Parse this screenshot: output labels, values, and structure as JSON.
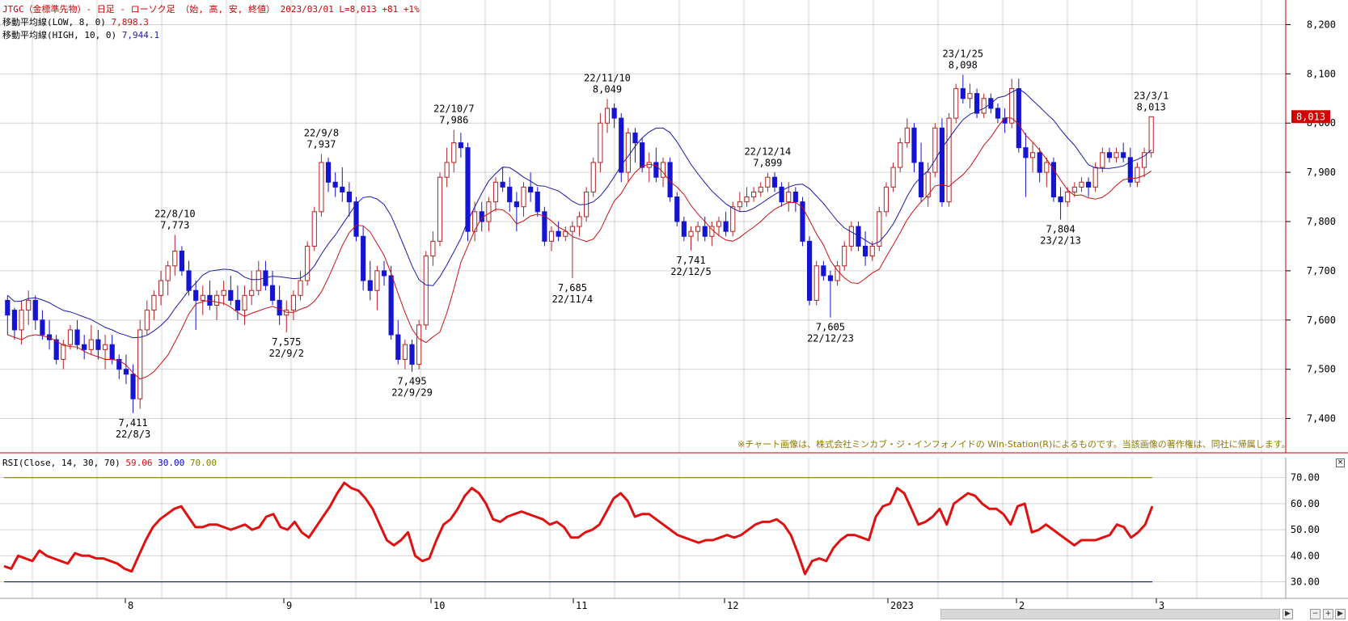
{
  "header": {
    "title_line": "JTGC（金標準先物）- 日足 - ローソク足 （始, 高, 安, 終値） 2023/03/01 L=8,013 +81 +1%",
    "ma_low_label": "移動平均線(LOW, 8, 0)",
    "ma_low_value": "7,898.3",
    "ma_high_label": "移動平均線(HIGH, 10, 0)",
    "ma_high_value": "7,944.1",
    "rsi_label": "RSI(Close, 14, 30, 70)",
    "rsi_value": "59.06",
    "rsi_low": "30.00",
    "rsi_high": "70.00"
  },
  "credit": "※チャート画像は、株式会社ミンカブ・ジ・インフォノイドの Win-Station(R)によるものです。当該画像の著作権は、同社に帰属します。",
  "price_tag": "8,013",
  "close_button": "×",
  "colors": {
    "up": "#b22222",
    "down": "#1414d2",
    "ma_low": "#cc1111",
    "ma_high": "#1a1aaa",
    "rsi": "#e01010",
    "rsi_upper_line": "#808000",
    "rsi_lower_line": "#0000cc",
    "grid": "#d4d4d4",
    "frame": "#c00000"
  },
  "chart_data": [
    {
      "type": "candlestick",
      "series": [
        {
          "name": "JTGC",
          "type": "candlestick"
        },
        {
          "name": "移動平均線(LOW, 8, 0)",
          "type": "line"
        },
        {
          "name": "移動平均線(HIGH, 10, 0)",
          "type": "line"
        }
      ],
      "ylim": [
        7350,
        8250
      ],
      "y_ticks": [
        "7,400",
        "7,500",
        "7,600",
        "7,700",
        "7,800",
        "7,900",
        "8,000",
        "8,100",
        "8,200"
      ],
      "x_ticks": [
        "8",
        "9",
        "10",
        "11",
        "12",
        "2023",
        "2",
        "3"
      ],
      "annotations": [
        {
          "value": "7,411",
          "date": "22/8/3"
        },
        {
          "value": "7,773",
          "date": "22/8/10"
        },
        {
          "value": "7,575",
          "date": "22/9/2"
        },
        {
          "value": "7,937",
          "date": "22/9/8"
        },
        {
          "value": "7,495",
          "date": "22/9/29"
        },
        {
          "value": "7,986",
          "date": "22/10/7"
        },
        {
          "value": "7,685",
          "date": "22/11/4"
        },
        {
          "value": "8,049",
          "date": "22/11/10"
        },
        {
          "value": "7,741",
          "date": "22/12/5"
        },
        {
          "value": "7,899",
          "date": "22/12/14"
        },
        {
          "value": "7,605",
          "date": "22/12/23"
        },
        {
          "value": "8,098",
          "date": "23/1/25"
        },
        {
          "value": "7,804",
          "date": "23/2/13"
        },
        {
          "value": "8,013",
          "date": "23/3/1"
        }
      ],
      "candles": [
        [
          7640,
          7650,
          7570,
          7610
        ],
        [
          7620,
          7625,
          7560,
          7580
        ],
        [
          7580,
          7640,
          7550,
          7620
        ],
        [
          7620,
          7660,
          7590,
          7640
        ],
        [
          7640,
          7650,
          7580,
          7600
        ],
        [
          7600,
          7620,
          7560,
          7570
        ],
        [
          7570,
          7600,
          7540,
          7560
        ],
        [
          7560,
          7570,
          7510,
          7520
        ],
        [
          7520,
          7560,
          7500,
          7550
        ],
        [
          7550,
          7590,
          7540,
          7580
        ],
        [
          7580,
          7600,
          7540,
          7550
        ],
        [
          7550,
          7570,
          7520,
          7540
        ],
        [
          7540,
          7590,
          7530,
          7560
        ],
        [
          7560,
          7580,
          7520,
          7540
        ],
        [
          7540,
          7570,
          7500,
          7550
        ],
        [
          7550,
          7570,
          7510,
          7520
        ],
        [
          7520,
          7530,
          7480,
          7500
        ],
        [
          7500,
          7530,
          7470,
          7490
        ],
        [
          7490,
          7510,
          7411,
          7440
        ],
        [
          7440,
          7600,
          7420,
          7580
        ],
        [
          7580,
          7640,
          7570,
          7620
        ],
        [
          7620,
          7660,
          7600,
          7650
        ],
        [
          7650,
          7700,
          7630,
          7680
        ],
        [
          7680,
          7720,
          7650,
          7710
        ],
        [
          7710,
          7773,
          7690,
          7740
        ],
        [
          7740,
          7750,
          7690,
          7700
        ],
        [
          7700,
          7720,
          7650,
          7660
        ],
        [
          7660,
          7680,
          7580,
          7640
        ],
        [
          7640,
          7670,
          7610,
          7650
        ],
        [
          7650,
          7680,
          7620,
          7630
        ],
        [
          7630,
          7660,
          7600,
          7650
        ],
        [
          7650,
          7680,
          7630,
          7660
        ],
        [
          7660,
          7690,
          7630,
          7640
        ],
        [
          7640,
          7670,
          7600,
          7620
        ],
        [
          7620,
          7670,
          7590,
          7650
        ],
        [
          7650,
          7700,
          7630,
          7660
        ],
        [
          7660,
          7720,
          7650,
          7700
        ],
        [
          7700,
          7720,
          7660,
          7670
        ],
        [
          7670,
          7700,
          7630,
          7640
        ],
        [
          7640,
          7670,
          7590,
          7610
        ],
        [
          7610,
          7640,
          7575,
          7620
        ],
        [
          7620,
          7660,
          7600,
          7650
        ],
        [
          7650,
          7700,
          7640,
          7680
        ],
        [
          7680,
          7760,
          7670,
          7750
        ],
        [
          7750,
          7830,
          7740,
          7820
        ],
        [
          7820,
          7937,
          7810,
          7920
        ],
        [
          7920,
          7930,
          7860,
          7880
        ],
        [
          7880,
          7900,
          7850,
          7870
        ],
        [
          7870,
          7910,
          7840,
          7860
        ],
        [
          7860,
          7880,
          7810,
          7840
        ],
        [
          7840,
          7850,
          7760,
          7770
        ],
        [
          7770,
          7790,
          7660,
          7680
        ],
        [
          7680,
          7720,
          7640,
          7660
        ],
        [
          7660,
          7710,
          7620,
          7700
        ],
        [
          7700,
          7720,
          7670,
          7690
        ],
        [
          7690,
          7710,
          7560,
          7570
        ],
        [
          7570,
          7600,
          7510,
          7520
        ],
        [
          7520,
          7560,
          7500,
          7550
        ],
        [
          7550,
          7560,
          7495,
          7510
        ],
        [
          7510,
          7600,
          7500,
          7590
        ],
        [
          7590,
          7740,
          7580,
          7730
        ],
        [
          7730,
          7780,
          7710,
          7760
        ],
        [
          7760,
          7900,
          7750,
          7890
        ],
        [
          7890,
          7950,
          7870,
          7920
        ],
        [
          7920,
          7986,
          7900,
          7960
        ],
        [
          7960,
          7980,
          7930,
          7950
        ],
        [
          7950,
          7960,
          7760,
          7780
        ],
        [
          7780,
          7840,
          7760,
          7820
        ],
        [
          7820,
          7840,
          7780,
          7800
        ],
        [
          7800,
          7850,
          7780,
          7840
        ],
        [
          7840,
          7890,
          7820,
          7880
        ],
        [
          7880,
          7910,
          7860,
          7870
        ],
        [
          7870,
          7890,
          7820,
          7840
        ],
        [
          7840,
          7860,
          7780,
          7830
        ],
        [
          7830,
          7880,
          7810,
          7870
        ],
        [
          7870,
          7900,
          7840,
          7860
        ],
        [
          7860,
          7870,
          7810,
          7820
        ],
        [
          7820,
          7830,
          7750,
          7760
        ],
        [
          7760,
          7790,
          7740,
          7780
        ],
        [
          7780,
          7800,
          7760,
          7770
        ],
        [
          7770,
          7790,
          7760,
          7780
        ],
        [
          7780,
          7800,
          7685,
          7790
        ],
        [
          7790,
          7820,
          7770,
          7810
        ],
        [
          7810,
          7870,
          7800,
          7860
        ],
        [
          7860,
          7930,
          7850,
          7920
        ],
        [
          7920,
          8020,
          7900,
          8000
        ],
        [
          8000,
          8049,
          7980,
          8030
        ],
        [
          8030,
          8040,
          7990,
          8010
        ],
        [
          8010,
          8020,
          7880,
          7900
        ],
        [
          7900,
          7990,
          7880,
          7980
        ],
        [
          7980,
          7990,
          7920,
          7960
        ],
        [
          7960,
          7970,
          7900,
          7910
        ],
        [
          7910,
          7940,
          7880,
          7920
        ],
        [
          7920,
          7950,
          7880,
          7890
        ],
        [
          7890,
          7930,
          7870,
          7920
        ],
        [
          7920,
          7930,
          7840,
          7850
        ],
        [
          7850,
          7860,
          7790,
          7800
        ],
        [
          7800,
          7810,
          7760,
          7770
        ],
        [
          7770,
          7790,
          7741,
          7780
        ],
        [
          7780,
          7800,
          7760,
          7790
        ],
        [
          7790,
          7810,
          7760,
          7770
        ],
        [
          7770,
          7800,
          7750,
          7790
        ],
        [
          7790,
          7810,
          7770,
          7800
        ],
        [
          7800,
          7820,
          7770,
          7780
        ],
        [
          7780,
          7840,
          7770,
          7830
        ],
        [
          7830,
          7860,
          7820,
          7840
        ],
        [
          7840,
          7870,
          7830,
          7850
        ],
        [
          7850,
          7870,
          7840,
          7860
        ],
        [
          7860,
          7880,
          7850,
          7870
        ],
        [
          7870,
          7899,
          7860,
          7890
        ],
        [
          7890,
          7900,
          7860,
          7870
        ],
        [
          7870,
          7880,
          7830,
          7840
        ],
        [
          7840,
          7880,
          7820,
          7860
        ],
        [
          7860,
          7870,
          7820,
          7840
        ],
        [
          7840,
          7850,
          7750,
          7760
        ],
        [
          7760,
          7770,
          7630,
          7640
        ],
        [
          7640,
          7720,
          7630,
          7710
        ],
        [
          7710,
          7720,
          7680,
          7690
        ],
        [
          7690,
          7700,
          7605,
          7680
        ],
        [
          7680,
          7720,
          7670,
          7710
        ],
        [
          7710,
          7760,
          7700,
          7750
        ],
        [
          7750,
          7800,
          7740,
          7790
        ],
        [
          7790,
          7800,
          7740,
          7750
        ],
        [
          7750,
          7780,
          7710,
          7730
        ],
        [
          7730,
          7760,
          7720,
          7750
        ],
        [
          7750,
          7830,
          7740,
          7820
        ],
        [
          7820,
          7880,
          7810,
          7870
        ],
        [
          7870,
          7920,
          7860,
          7910
        ],
        [
          7910,
          7970,
          7900,
          7960
        ],
        [
          7960,
          8010,
          7950,
          7990
        ],
        [
          7990,
          8000,
          7900,
          7920
        ],
        [
          7920,
          7960,
          7840,
          7850
        ],
        [
          7850,
          7920,
          7830,
          7900
        ],
        [
          7900,
          8000,
          7890,
          7990
        ],
        [
          7990,
          8010,
          7830,
          7840
        ],
        [
          7840,
          8020,
          7830,
          8010
        ],
        [
          8010,
          8080,
          8000,
          8070
        ],
        [
          8070,
          8098,
          8040,
          8050
        ],
        [
          8050,
          8080,
          8030,
          8060
        ],
        [
          8060,
          8070,
          8010,
          8020
        ],
        [
          8020,
          8060,
          8010,
          8050
        ],
        [
          8050,
          8060,
          8020,
          8030
        ],
        [
          8030,
          8040,
          8000,
          8010
        ],
        [
          8010,
          8030,
          7980,
          8000
        ],
        [
          8000,
          8090,
          7990,
          8070
        ],
        [
          8070,
          8090,
          7940,
          7950
        ],
        [
          7950,
          7980,
          7850,
          7930
        ],
        [
          7930,
          7960,
          7900,
          7940
        ],
        [
          7940,
          7950,
          7880,
          7900
        ],
        [
          7900,
          7930,
          7870,
          7920
        ],
        [
          7920,
          7930,
          7840,
          7850
        ],
        [
          7850,
          7870,
          7804,
          7840
        ],
        [
          7840,
          7870,
          7830,
          7860
        ],
        [
          7860,
          7880,
          7850,
          7870
        ],
        [
          7870,
          7890,
          7860,
          7880
        ],
        [
          7880,
          7890,
          7850,
          7870
        ],
        [
          7870,
          7920,
          7860,
          7910
        ],
        [
          7910,
          7950,
          7900,
          7940
        ],
        [
          7940,
          7950,
          7920,
          7930
        ],
        [
          7930,
          7950,
          7920,
          7940
        ],
        [
          7940,
          7960,
          7920,
          7930
        ],
        [
          7930,
          7950,
          7870,
          7880
        ],
        [
          7880,
          7920,
          7870,
          7910
        ],
        [
          7910,
          7950,
          7890,
          7940
        ],
        [
          7940,
          8013,
          7930,
          8013
        ]
      ]
    },
    {
      "type": "line",
      "series": [
        {
          "name": "RSI(Close, 14, 30, 70)"
        }
      ],
      "ylim": [
        28,
        73
      ],
      "y_ticks": [
        "30.00",
        "40.00",
        "50.00",
        "60.00",
        "70.00"
      ],
      "reference_lines": [
        30,
        70
      ],
      "values": [
        36,
        35,
        40,
        39,
        38,
        42,
        40,
        39,
        38,
        37,
        41,
        40,
        40,
        39,
        39,
        38,
        37,
        35,
        34,
        40,
        46,
        51,
        54,
        56,
        58,
        59,
        55,
        51,
        51,
        52,
        52,
        51,
        50,
        51,
        52,
        50,
        51,
        55,
        56,
        51,
        50,
        53,
        49,
        47,
        51,
        55,
        59,
        64,
        68,
        66,
        65,
        62,
        58,
        52,
        46,
        44,
        46,
        49,
        40,
        38,
        39,
        46,
        52,
        54,
        58,
        63,
        66,
        64,
        60,
        54,
        53,
        55,
        56,
        57,
        56,
        55,
        54,
        52,
        53,
        51,
        47,
        47,
        49,
        50,
        52,
        57,
        62,
        64,
        61,
        55,
        56,
        56,
        54,
        52,
        50,
        48,
        47,
        46,
        45,
        46,
        46,
        47,
        48,
        47,
        48,
        50,
        52,
        53,
        53,
        54,
        52,
        48,
        41,
        33,
        38,
        39,
        38,
        43,
        46,
        48,
        48,
        47,
        46,
        55,
        59,
        60,
        66,
        64,
        58,
        52,
        53,
        55,
        58,
        52,
        60,
        62,
        64,
        63,
        60,
        58,
        58,
        56,
        52,
        59,
        60,
        49,
        50,
        52,
        50,
        48,
        46,
        44,
        46,
        46,
        46,
        47,
        48,
        52,
        51,
        47,
        49,
        52,
        59
      ]
    }
  ]
}
